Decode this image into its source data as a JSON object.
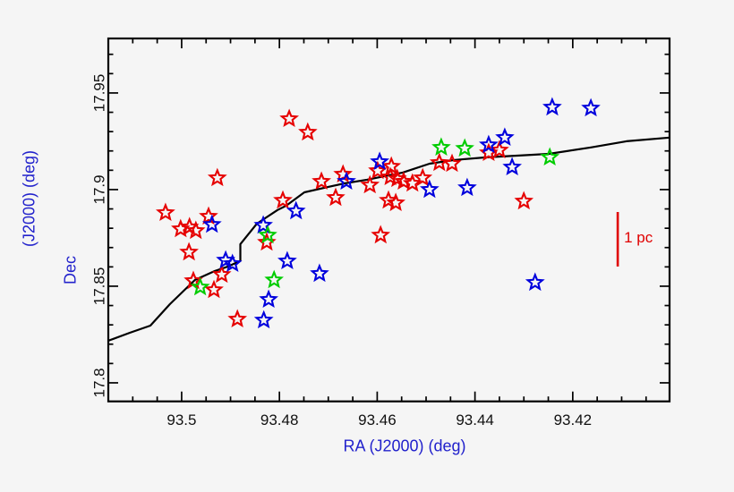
{
  "figure": {
    "background": "#f5f5f5",
    "frame_color": "#000000",
    "tick_label_color": "#111111",
    "axis_title_color": "#2222cc"
  },
  "chart_data": {
    "type": "scatter",
    "title": "",
    "xlabel": "RA (J2000) (deg)",
    "ylabel": "Dec (J2000) (deg)",
    "ylabel_parts": [
      "Dec",
      "(J2000) (deg)"
    ],
    "x_axis_reversed": true,
    "x_range": [
      93.515,
      93.4002
    ],
    "y_range": [
      17.7904,
      17.9782
    ],
    "grid": false,
    "legend": "none",
    "x_ticks": {
      "major": [
        93.5,
        93.48,
        93.46,
        93.44,
        93.42
      ],
      "labels": [
        "93.5",
        "93.48",
        "93.46",
        "93.44",
        "93.42"
      ],
      "minor_step": 0.005
    },
    "y_ticks": {
      "major": [
        17.8,
        17.85,
        17.9,
        17.95
      ],
      "labels": [
        "17.8",
        "17.85",
        "17.9",
        "17.95"
      ],
      "minor_step": 0.01
    },
    "series": [
      {
        "name": "red-stars",
        "marker": "open-star",
        "color": "#e60000",
        "points": [
          [
            93.4927,
            17.906
          ],
          [
            93.5033,
            17.888
          ],
          [
            93.4945,
            17.8861
          ],
          [
            93.5002,
            17.8796
          ],
          [
            93.4984,
            17.8806
          ],
          [
            93.4971,
            17.8787
          ],
          [
            93.4985,
            17.8676
          ],
          [
            93.4793,
            17.8944
          ],
          [
            93.478,
            17.9366
          ],
          [
            93.4742,
            17.9296
          ],
          [
            93.4714,
            17.9042
          ],
          [
            93.4685,
            17.8958
          ],
          [
            93.467,
            17.9079
          ],
          [
            93.4615,
            17.9023
          ],
          [
            93.4599,
            17.9097
          ],
          [
            93.4571,
            17.912
          ],
          [
            93.4573,
            17.9065
          ],
          [
            93.4559,
            17.9056
          ],
          [
            93.4546,
            17.9042
          ],
          [
            93.4528,
            17.9032
          ],
          [
            93.4507,
            17.906
          ],
          [
            93.4577,
            17.8944
          ],
          [
            93.4562,
            17.8931
          ],
          [
            93.4593,
            17.8764
          ],
          [
            93.4473,
            17.9139
          ],
          [
            93.4447,
            17.9134
          ],
          [
            93.4372,
            17.919
          ],
          [
            93.435,
            17.9204
          ],
          [
            93.43,
            17.894
          ],
          [
            93.4918,
            17.856
          ],
          [
            93.4976,
            17.8528
          ],
          [
            93.4934,
            17.8481
          ],
          [
            93.4886,
            17.8329
          ],
          [
            93.4826,
            17.8727
          ]
        ]
      },
      {
        "name": "blue-stars",
        "marker": "open-star",
        "color": "#0000dd",
        "points": [
          [
            93.4938,
            17.8819
          ],
          [
            93.4833,
            17.8815
          ],
          [
            93.491,
            17.8634
          ],
          [
            93.4896,
            17.8616
          ],
          [
            93.4784,
            17.863
          ],
          [
            93.4766,
            17.8889
          ],
          [
            93.4718,
            17.8565
          ],
          [
            93.4663,
            17.9042
          ],
          [
            93.4595,
            17.9144
          ],
          [
            93.4493,
            17.9
          ],
          [
            93.4416,
            17.9009
          ],
          [
            93.4372,
            17.9231
          ],
          [
            93.4339,
            17.9269
          ],
          [
            93.4324,
            17.9116
          ],
          [
            93.4242,
            17.9426
          ],
          [
            93.4163,
            17.9421
          ],
          [
            93.4277,
            17.8519
          ],
          [
            93.4822,
            17.8431
          ],
          [
            93.4832,
            17.8324
          ]
        ]
      },
      {
        "name": "green-stars",
        "marker": "open-star",
        "color": "#00cc00",
        "points": [
          [
            93.4824,
            17.8764
          ],
          [
            93.4962,
            17.8495
          ],
          [
            93.4811,
            17.8532
          ],
          [
            93.4469,
            17.9218
          ],
          [
            93.4421,
            17.9213
          ],
          [
            93.4247,
            17.9167
          ]
        ]
      }
    ],
    "curve": {
      "name": "filament-curve",
      "color": "#000000",
      "points": [
        [
          93.515,
          17.8218
        ],
        [
          93.5106,
          17.8259
        ],
        [
          93.5064,
          17.8296
        ],
        [
          93.5024,
          17.8407
        ],
        [
          93.4973,
          17.8532
        ],
        [
          93.4932,
          17.8579
        ],
        [
          93.4905,
          17.8602
        ],
        [
          93.4885,
          17.8625
        ],
        [
          93.488,
          17.863
        ],
        [
          93.488,
          17.8718
        ],
        [
          93.4846,
          17.8824
        ],
        [
          93.4804,
          17.8894
        ],
        [
          93.4786,
          17.8917
        ],
        [
          93.4749,
          17.8986
        ],
        [
          93.47,
          17.9014
        ],
        [
          93.4667,
          17.9032
        ],
        [
          93.4621,
          17.9051
        ],
        [
          93.4548,
          17.9088
        ],
        [
          93.4493,
          17.9134
        ],
        [
          93.4443,
          17.9153
        ],
        [
          93.4377,
          17.9167
        ],
        [
          93.431,
          17.9176
        ],
        [
          93.4249,
          17.9185
        ],
        [
          93.4163,
          17.9218
        ],
        [
          93.409,
          17.925
        ],
        [
          93.4002,
          17.9269
        ]
      ]
    },
    "scale_bar": {
      "label": "1 pc",
      "color": "#e00000",
      "ra": 93.4108,
      "dec_start": 17.8602,
      "dec_end": 17.8884
    }
  }
}
